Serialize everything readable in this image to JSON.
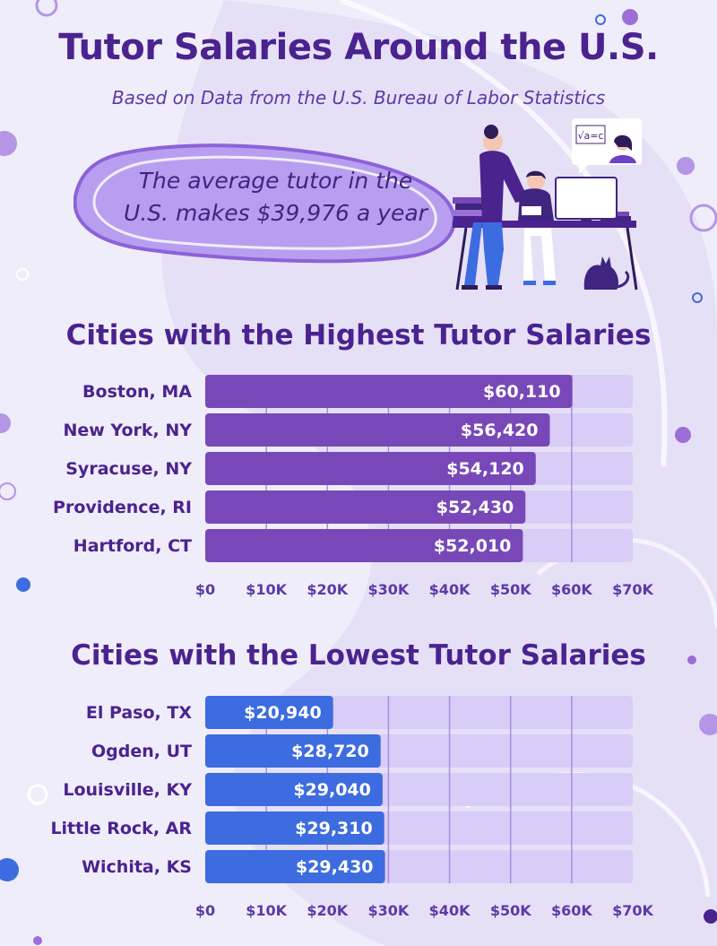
{
  "header": {
    "title": "Tutor Salaries Around the U.S.",
    "subtitle": "Based on Data from the U.S. Bureau of Labor Statistics"
  },
  "callout": {
    "line1": "The average tutor in the",
    "line2": "U.S. makes $39,976 a year"
  },
  "illustration": {
    "chalkboard_text": "√a=c"
  },
  "colors": {
    "title": "#4a238f",
    "high_bar": "#7848b8",
    "low_bar": "#3d6be0",
    "track": "#d9ccf7",
    "background": "#efedf9"
  },
  "chart_data": [
    {
      "type": "bar",
      "orientation": "horizontal",
      "title": "Cities with the Highest Tutor Salaries",
      "categories": [
        "Boston, MA",
        "New York, NY",
        "Syracuse, NY",
        "Providence, RI",
        "Hartford, CT"
      ],
      "values": [
        60110,
        56420,
        54120,
        52430,
        52010
      ],
      "value_labels": [
        "$60,110",
        "$56,420",
        "$54,120",
        "$52,430",
        "$52,010"
      ],
      "xlim": [
        0,
        70000
      ],
      "xticks": [
        "$0",
        "$10K",
        "$20K",
        "$30K",
        "$40K",
        "$50K",
        "$60K",
        "$70K"
      ],
      "grid": true
    },
    {
      "type": "bar",
      "orientation": "horizontal",
      "title": "Cities with the Lowest Tutor Salaries",
      "categories": [
        "El Paso, TX",
        "Ogden, UT",
        "Louisville, KY",
        "Little Rock, AR",
        "Wichita, KS"
      ],
      "values": [
        20940,
        28720,
        29040,
        29310,
        29430
      ],
      "value_labels": [
        "$20,940",
        "$28,720",
        "$29,040",
        "$29,310",
        "$29,430"
      ],
      "xlim": [
        0,
        70000
      ],
      "xticks": [
        "$0",
        "$10K",
        "$20K",
        "$30K",
        "$40K",
        "$50K",
        "$60K",
        "$70K"
      ],
      "grid": true
    }
  ]
}
